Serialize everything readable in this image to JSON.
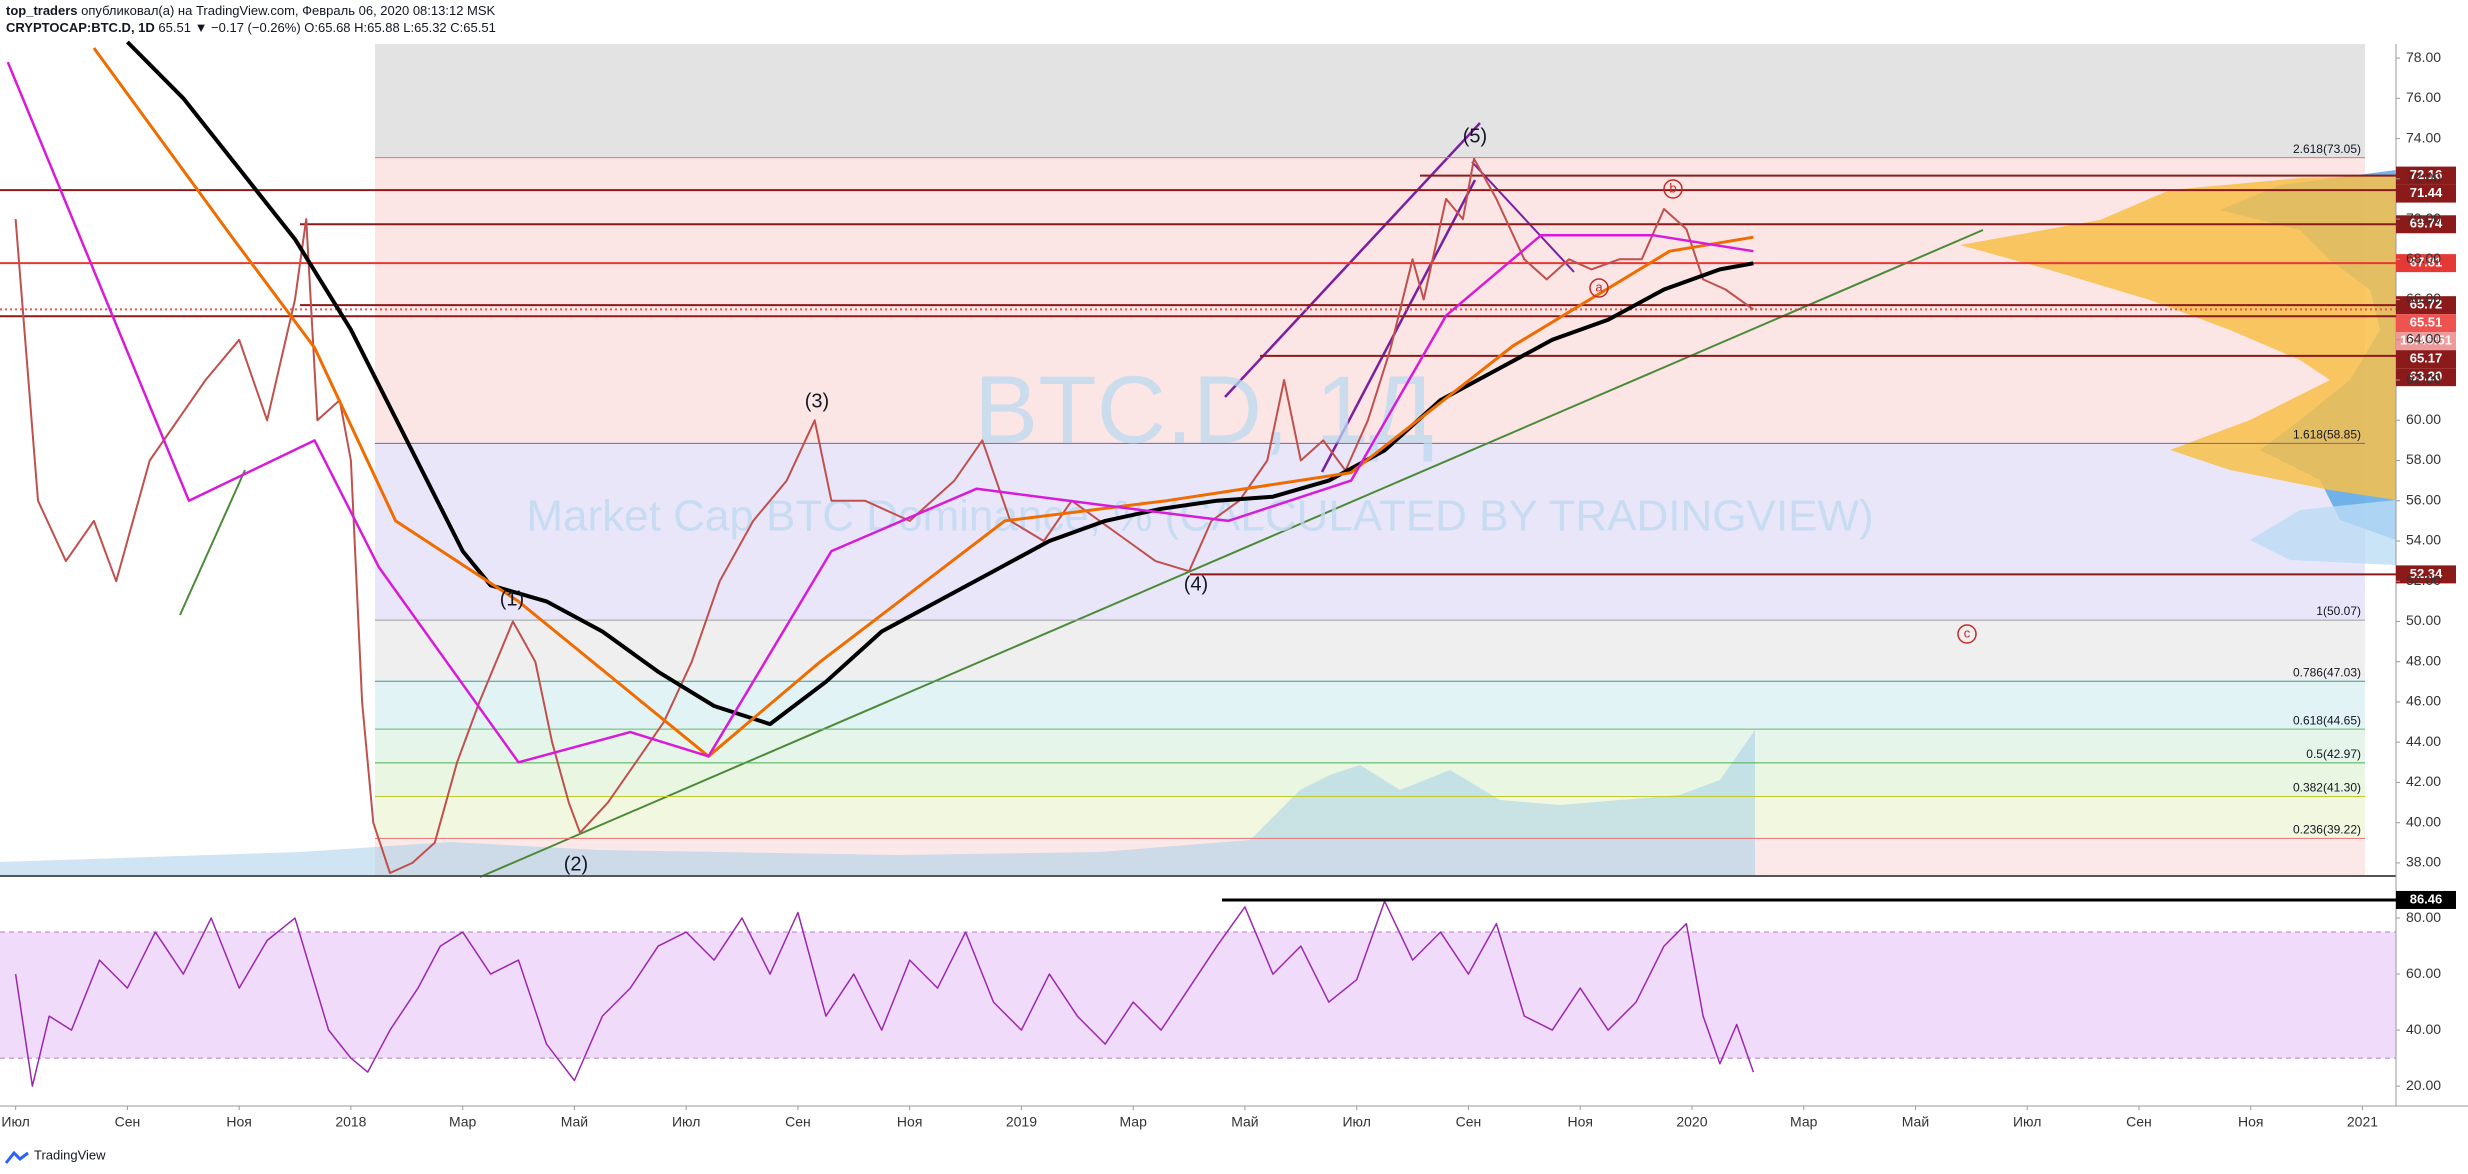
{
  "header": {
    "user": "top_traders",
    "published": "опубликовал(а) на TradingView.com, Февраль 06, 2020 08:13:12 MSK",
    "symbol": "CRYPTOCAP:BTC.D, 1D",
    "quote": "65.51 ▼ −0.17 (−0.26%) O:65.68 H:65.88 L:65.32 C:65.51"
  },
  "footer": "TradingView",
  "chart_data": [
    {
      "type": "line",
      "watermark": [
        "BTC.D, 1Д",
        "Market Cap BTC Dominance, % (CALCULATED BY TRADINGVIEW)"
      ],
      "xlim": [
        -0.28,
        42.6
      ],
      "ylim": [
        37.4,
        78.7
      ],
      "xticks": [
        {
          "value": 0,
          "label": "Июл"
        },
        {
          "value": 2,
          "label": "Сен"
        },
        {
          "value": 4,
          "label": "Ноя"
        },
        {
          "value": 6,
          "label": "2018"
        },
        {
          "value": 8,
          "label": "Мар"
        },
        {
          "value": 10,
          "label": "Май"
        },
        {
          "value": 12,
          "label": "Июл"
        },
        {
          "value": 14,
          "label": "Сен"
        },
        {
          "value": 16,
          "label": "Ноя"
        },
        {
          "value": 18,
          "label": "2019"
        },
        {
          "value": 20,
          "label": "Мар"
        },
        {
          "value": 22,
          "label": "Май"
        },
        {
          "value": 24,
          "label": "Июл"
        },
        {
          "value": 26,
          "label": "Сен"
        },
        {
          "value": 28,
          "label": "Ноя"
        },
        {
          "value": 30,
          "label": "2020"
        },
        {
          "value": 32,
          "label": "Мар"
        },
        {
          "value": 34,
          "label": "Май"
        },
        {
          "value": 36,
          "label": "Июл"
        },
        {
          "value": 38,
          "label": "Сен"
        },
        {
          "value": 40,
          "label": "Ноя"
        },
        {
          "value": 42,
          "label": "2021"
        }
      ],
      "yticks": [
        {
          "value": 38,
          "label": "38.00"
        },
        {
          "value": 40,
          "label": "40.00"
        },
        {
          "value": 42,
          "label": "42.00"
        },
        {
          "value": 44,
          "label": "44.00"
        },
        {
          "value": 46,
          "label": "46.00"
        },
        {
          "value": 48,
          "label": "48.00"
        },
        {
          "value": 50,
          "label": "50.00"
        },
        {
          "value": 52,
          "label": "52.00"
        },
        {
          "value": 54,
          "label": "54.00"
        },
        {
          "value": 56,
          "label": "56.00"
        },
        {
          "value": 58,
          "label": "58.00"
        },
        {
          "value": 60,
          "label": "60.00"
        },
        {
          "value": 62,
          "label": "62.00"
        },
        {
          "value": 64,
          "label": "64.00"
        },
        {
          "value": 66,
          "label": "66.00"
        },
        {
          "value": 68,
          "label": "68.00"
        },
        {
          "value": 70,
          "label": "70.00"
        },
        {
          "value": 72,
          "label": "72.00"
        },
        {
          "value": 74,
          "label": "74.00"
        },
        {
          "value": 76,
          "label": "76.00"
        },
        {
          "value": 78,
          "label": "78.00"
        }
      ],
      "fib": [
        {
          "value": 73.05,
          "label": "2.618(73.05)"
        },
        {
          "value": 58.85,
          "label": "1.618(58.85)"
        },
        {
          "value": 50.07,
          "label": "1(50.07)"
        },
        {
          "value": 47.03,
          "label": "0.786(47.03)"
        },
        {
          "value": 44.65,
          "label": "0.618(44.65)"
        },
        {
          "value": 42.97,
          "label": "0.5(42.97)"
        },
        {
          "value": 41.3,
          "label": "0.382(41.30)"
        },
        {
          "value": 39.22,
          "label": "0.236(39.22)"
        }
      ],
      "fib_line_colors": [
        "#e57373",
        "#5c6bc0",
        "#9e9e9e",
        "#26a69a",
        "#66bb6a",
        "#4caf50",
        "#c0ca33",
        "#e57373"
      ],
      "fib_colors": [
        "#e3e3e3",
        "#fbe5e5",
        "#e8e6f8",
        "#efefef",
        "#e2f3f5",
        "#e5f5ea",
        "#e8f6e2",
        "#f2f8df",
        "#fbe9e9"
      ],
      "levels": [
        72.16,
        71.44,
        69.74,
        67.81,
        65.72,
        65.51,
        65.17,
        {
          "value": 63.2,
          "label": "63.20"
        },
        52.34
      ],
      "level_colors": [
        "#8b1a1a",
        "#8b1a1a",
        "#8b1a1a",
        "#e53935",
        "#8b1a1a",
        "#ef5350",
        "#8b1a1a",
        "#8b1a1a",
        "#8b1a1a"
      ],
      "countdown": "18:46:51",
      "annotations": [
        "(1)",
        "(2)",
        "(3)",
        "(4)",
        "(5)",
        "a",
        "b",
        "c"
      ],
      "series": [
        {
          "color": "#c0504d",
          "width": 2,
          "x": [
            0,
            0.4,
            0.9,
            1.4,
            1.8,
            2.4,
            3.4,
            4.0,
            4.5,
            5.0,
            5.2,
            5.4,
            5.8,
            6.0,
            6.2,
            6.4,
            6.7,
            7.1,
            7.5,
            7.9,
            8.3,
            8.9,
            9.3,
            9.6,
            9.9,
            10.1,
            10.6,
            11.1,
            11.6,
            12.1,
            12.6,
            13.2,
            13.8,
            14.3,
            14.6,
            15.2,
            16.0,
            16.8,
            17.3,
            17.8,
            18.4,
            18.9,
            19.4,
            19.9,
            20.4,
            21.0,
            21.4,
            21.9,
            22.4,
            22.7,
            23.0,
            23.4,
            23.8,
            24.2,
            24.6,
            25.0,
            25.2,
            25.6,
            25.9,
            26.1,
            26.5,
            27.0,
            27.4,
            27.8,
            28.2,
            28.7,
            29.1,
            29.5,
            29.9,
            30.2,
            30.6,
            31.1
          ],
          "values": [
            70,
            56,
            53,
            55,
            52,
            58,
            62,
            64,
            60,
            66,
            70,
            60,
            61,
            58,
            46,
            40,
            37.5,
            38,
            39,
            43,
            46,
            50,
            48,
            44,
            41,
            39.5,
            41,
            43,
            45,
            48,
            52,
            55,
            57,
            60,
            56,
            56,
            55,
            57,
            59,
            55,
            54,
            56,
            55,
            54,
            53,
            52.5,
            55,
            56,
            58,
            62,
            58,
            59,
            57.5,
            60,
            63.5,
            68,
            66,
            71,
            70,
            73,
            71,
            68,
            67,
            68,
            67.5,
            68,
            68,
            70.5,
            69.5,
            67,
            66.5,
            65.51
          ]
        },
        {
          "color": "#000000",
          "width": 4,
          "x": [
            2,
            3,
            4,
            5,
            6,
            7,
            8,
            8.5,
            9.5,
            10.5,
            11.5,
            12.5,
            13.5,
            14.5,
            15.5,
            16.5,
            17.5,
            18.5,
            19.5,
            20.5,
            21.5,
            22.5,
            23.5,
            24.5,
            25.5,
            26.5,
            27.5,
            28.5,
            29.5,
            30.5,
            31.1
          ],
          "values": [
            78.8,
            76,
            72.5,
            69,
            64.5,
            59,
            53.5,
            51.8,
            51,
            49.5,
            47.5,
            45.8,
            44.9,
            47,
            49.5,
            51,
            52.5,
            54,
            55,
            55.6,
            56,
            56.2,
            57,
            58.5,
            61,
            62.5,
            64,
            65,
            66.5,
            67.5,
            67.8
          ]
        },
        {
          "color": "#ef6c00",
          "width": 3,
          "x": [
            1.4,
            3.9,
            5.35,
            6.8,
            9,
            12.4,
            14.4,
            17.7,
            20.6,
            23.9,
            26.8,
            29.6,
            31.1
          ],
          "values": [
            78.5,
            69,
            63.6,
            55,
            51,
            43.3,
            48,
            55,
            56,
            57.4,
            63.7,
            68.4,
            69.1
          ]
        },
        {
          "color": "#d81bd8",
          "width": 2.5,
          "x": [
            -0.14,
            3.1,
            5.35,
            6.5,
            9,
            11,
            12.4,
            14.6,
            17.2,
            19.4,
            21.7,
            23.9,
            25.6,
            27.3,
            29.3,
            31.1
          ],
          "values": [
            77.8,
            56,
            59,
            52.7,
            43,
            44.5,
            43.3,
            53.5,
            56.6,
            55.8,
            55,
            57,
            65.2,
            69.2,
            69.2,
            68.4
          ]
        }
      ]
    },
    {
      "type": "line",
      "ylim": [
        12.9,
        94.3
      ],
      "yticks": [
        {
          "value": 20,
          "label": "20.00"
        },
        {
          "value": 40,
          "label": "40.00"
        },
        {
          "value": 60,
          "label": "60.00"
        },
        {
          "value": 80,
          "label": "80.00"
        }
      ],
      "bands": [
        30,
        75
      ],
      "band_color": "#f0dcfa",
      "level": 86.46,
      "series": [
        {
          "color": "#9c27b0",
          "width": 1.5,
          "x": [
            0,
            0.3,
            0.6,
            1,
            1.5,
            2,
            2.5,
            3,
            3.5,
            4,
            4.5,
            5,
            5.3,
            5.6,
            6,
            6.3,
            6.7,
            7.2,
            7.6,
            8,
            8.5,
            9,
            9.5,
            10,
            10.5,
            11,
            11.5,
            12,
            12.5,
            13,
            13.5,
            14,
            14.5,
            15,
            15.5,
            16,
            16.5,
            17,
            17.5,
            18,
            18.5,
            19,
            19.5,
            20,
            20.5,
            21,
            21.5,
            22,
            22.5,
            23,
            23.5,
            24,
            24.5,
            25,
            25.5,
            26,
            26.5,
            27,
            27.5,
            28,
            28.5,
            29,
            29.5,
            29.9,
            30.2,
            30.5,
            30.8,
            31.1
          ],
          "values": [
            60,
            20,
            45,
            40,
            65,
            55,
            75,
            60,
            80,
            55,
            72,
            80,
            60,
            40,
            30,
            25,
            40,
            55,
            70,
            75,
            60,
            65,
            35,
            22,
            45,
            55,
            70,
            75,
            65,
            80,
            60,
            82,
            45,
            60,
            40,
            65,
            55,
            75,
            50,
            40,
            60,
            45,
            35,
            50,
            40,
            55,
            70,
            84,
            60,
            70,
            50,
            58,
            86,
            65,
            75,
            60,
            78,
            45,
            40,
            55,
            40,
            50,
            70,
            78,
            45,
            28,
            42,
            25
          ]
        }
      ]
    }
  ]
}
